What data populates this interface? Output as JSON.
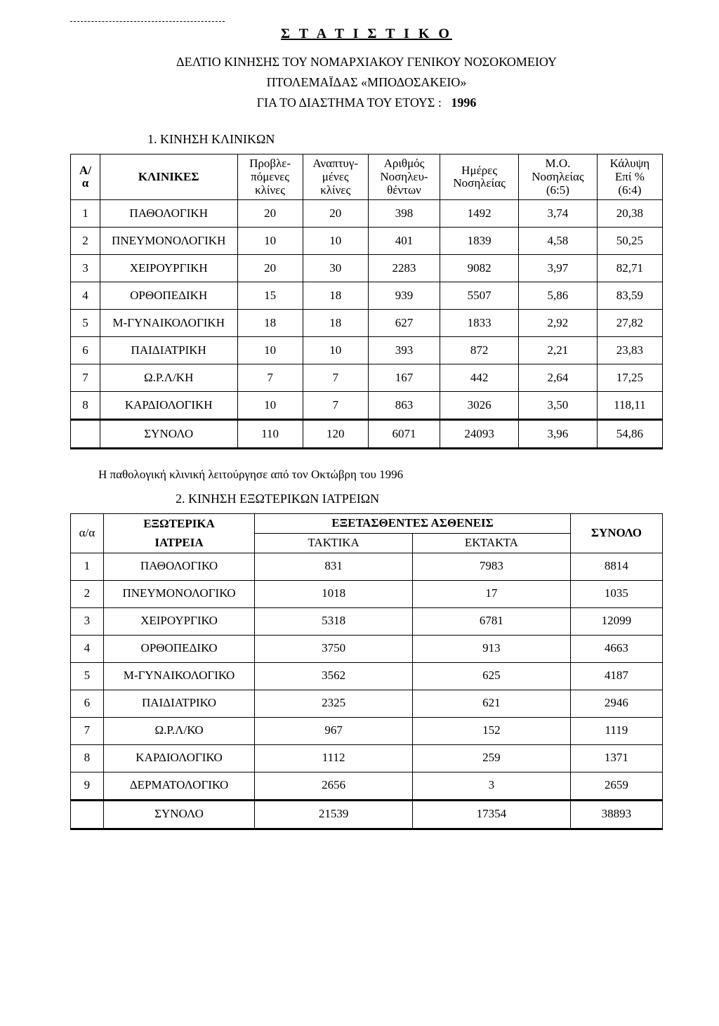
{
  "title": {
    "main": "Σ Τ Α Τ Ι Σ Τ Ι Κ Ο",
    "line1": "ΔΕΛΤΙΟ ΚΙΝΗΣΗΣ ΤΟΥ ΝΟΜΑΡΧΙΑΚΟΥ ΓΕΝΙΚΟΥ ΝΟΣΟΚΟΜΕΙΟΥ",
    "line2": "ΠΤΟΛΕΜΑΪΔΑΣ «ΜΠΟΔΟΣΑΚΕΙΟ»",
    "line3_prefix": "ΓΙΑ ΤΟ ΔΙΑΣΤΗΜΑ ΤΟΥ ΕΤΟΥΣ :",
    "year": "1996"
  },
  "section1": {
    "heading": "1.   ΚΙΝΗΣΗ ΚΛΙΝΙΚΩΝ",
    "headers": {
      "aa": "Α/\nα",
      "klinikes": "ΚΛΙΝΙΚΕΣ",
      "provlepomenes": "Προβλε-\nπόμενες\nκλίνες",
      "anaptygmenes": "Αναπτυγ-\nμένες\nκλίνες",
      "arithmos": "Αριθμός\nΝοσηλευ-\nθέντων",
      "imeres": "Ημέρες\nΝοσηλείας",
      "mo": "Μ.Ο.\nΝοσηλείας\n(6:5)",
      "kalypsi": "Κάλυψη\nΕπί %\n(6:4)"
    },
    "rows": [
      {
        "n": "1",
        "name": "ΠΑΘΟΛΟΓΙΚΗ",
        "a": "20",
        "b": "20",
        "c": "398",
        "d": "1492",
        "e": "3,74",
        "f": "20,38"
      },
      {
        "n": "2",
        "name": "ΠΝΕΥΜΟΝΟΛΟΓΙΚΗ",
        "a": "10",
        "b": "10",
        "c": "401",
        "d": "1839",
        "e": "4,58",
        "f": "50,25"
      },
      {
        "n": "3",
        "name": "ΧΕΙΡΟΥΡΓΙΚΗ",
        "a": "20",
        "b": "30",
        "c": "2283",
        "d": "9082",
        "e": "3,97",
        "f": "82,71"
      },
      {
        "n": "4",
        "name": "ΟΡΘΟΠΕΔΙΚΗ",
        "a": "15",
        "b": "18",
        "c": "939",
        "d": "5507",
        "e": "5,86",
        "f": "83,59"
      },
      {
        "n": "5",
        "name": "Μ-ΓΥΝΑΙΚΟΛΟΓΙΚΗ",
        "a": "18",
        "b": "18",
        "c": "627",
        "d": "1833",
        "e": "2,92",
        "f": "27,82"
      },
      {
        "n": "6",
        "name": "ΠΑΙΔΙΑΤΡΙΚΗ",
        "a": "10",
        "b": "10",
        "c": "393",
        "d": "872",
        "e": "2,21",
        "f": "23,83"
      },
      {
        "n": "7",
        "name": "Ω.Ρ.Λ/ΚΗ",
        "a": "7",
        "b": "7",
        "c": "167",
        "d": "442",
        "e": "2,64",
        "f": "17,25"
      },
      {
        "n": "8",
        "name": "ΚΑΡΔΙΟΛΟΓΙΚΗ",
        "a": "10",
        "b": "7",
        "c": "863",
        "d": "3026",
        "e": "3,50",
        "f": "118,11"
      }
    ],
    "total": {
      "label": "ΣΥΝΟΛΟ",
      "a": "110",
      "b": "120",
      "c": "6071",
      "d": "24093",
      "e": "3,96",
      "f": "54,86"
    }
  },
  "note1": "Η παθολογική κλινική λειτούργησε από τον Οκτώβρη του 1996",
  "section2": {
    "heading": "2.   ΚΙΝΗΣΗ ΕΞΩΤΕΡΙΚΩΝ ΙΑΤΡΕΙΩΝ",
    "headers": {
      "aa": "α/α",
      "eksoterika_line1": "ΕΞΩΤΕΡΙΚΑ",
      "eksoterika_line2": "ΙΑΤΡΕΙΑ",
      "eksetasthentes": "ΕΞΕΤΑΣΘΕΝΤΕΣ ΑΣΘΕΝΕΙΣ",
      "taktika": "ΤΑΚΤΙΚΑ",
      "ektakta": "ΕΚΤΑΚΤΑ",
      "synolo": "ΣΥΝΟΛΟ"
    },
    "rows": [
      {
        "n": "1",
        "name": "ΠΑΘΟΛΟΓΙΚΟ",
        "a": "831",
        "b": "7983",
        "c": "8814"
      },
      {
        "n": "2",
        "name": "ΠΝΕΥΜΟΝΟΛΟΓΙΚΟ",
        "a": "1018",
        "b": "17",
        "c": "1035"
      },
      {
        "n": "3",
        "name": "ΧΕΙΡΟΥΡΓΙΚΟ",
        "a": "5318",
        "b": "6781",
        "c": "12099"
      },
      {
        "n": "4",
        "name": "ΟΡΘΟΠΕΔΙΚΟ",
        "a": "3750",
        "b": "913",
        "c": "4663"
      },
      {
        "n": "5",
        "name": "Μ-ΓΥΝΑΙΚΟΛΟΓΙΚΟ",
        "a": "3562",
        "b": "625",
        "c": "4187"
      },
      {
        "n": "6",
        "name": "ΠΑΙΔΙΑΤΡΙΚΟ",
        "a": "2325",
        "b": "621",
        "c": "2946"
      },
      {
        "n": "7",
        "name": "Ω.Ρ.Λ/ΚΟ",
        "a": "967",
        "b": "152",
        "c": "1119"
      },
      {
        "n": "8",
        "name": "ΚΑΡΔΙΟΛΟΓΙΚΟ",
        "a": "1112",
        "b": "259",
        "c": "1371"
      },
      {
        "n": "9",
        "name": "ΔΕΡΜΑΤΟΛΟΓΙΚΟ",
        "a": "2656",
        "b": "3",
        "c": "2659"
      }
    ],
    "total": {
      "label": "ΣΥΝΟΛΟ",
      "a": "21539",
      "b": "17354",
      "c": "38893"
    }
  }
}
